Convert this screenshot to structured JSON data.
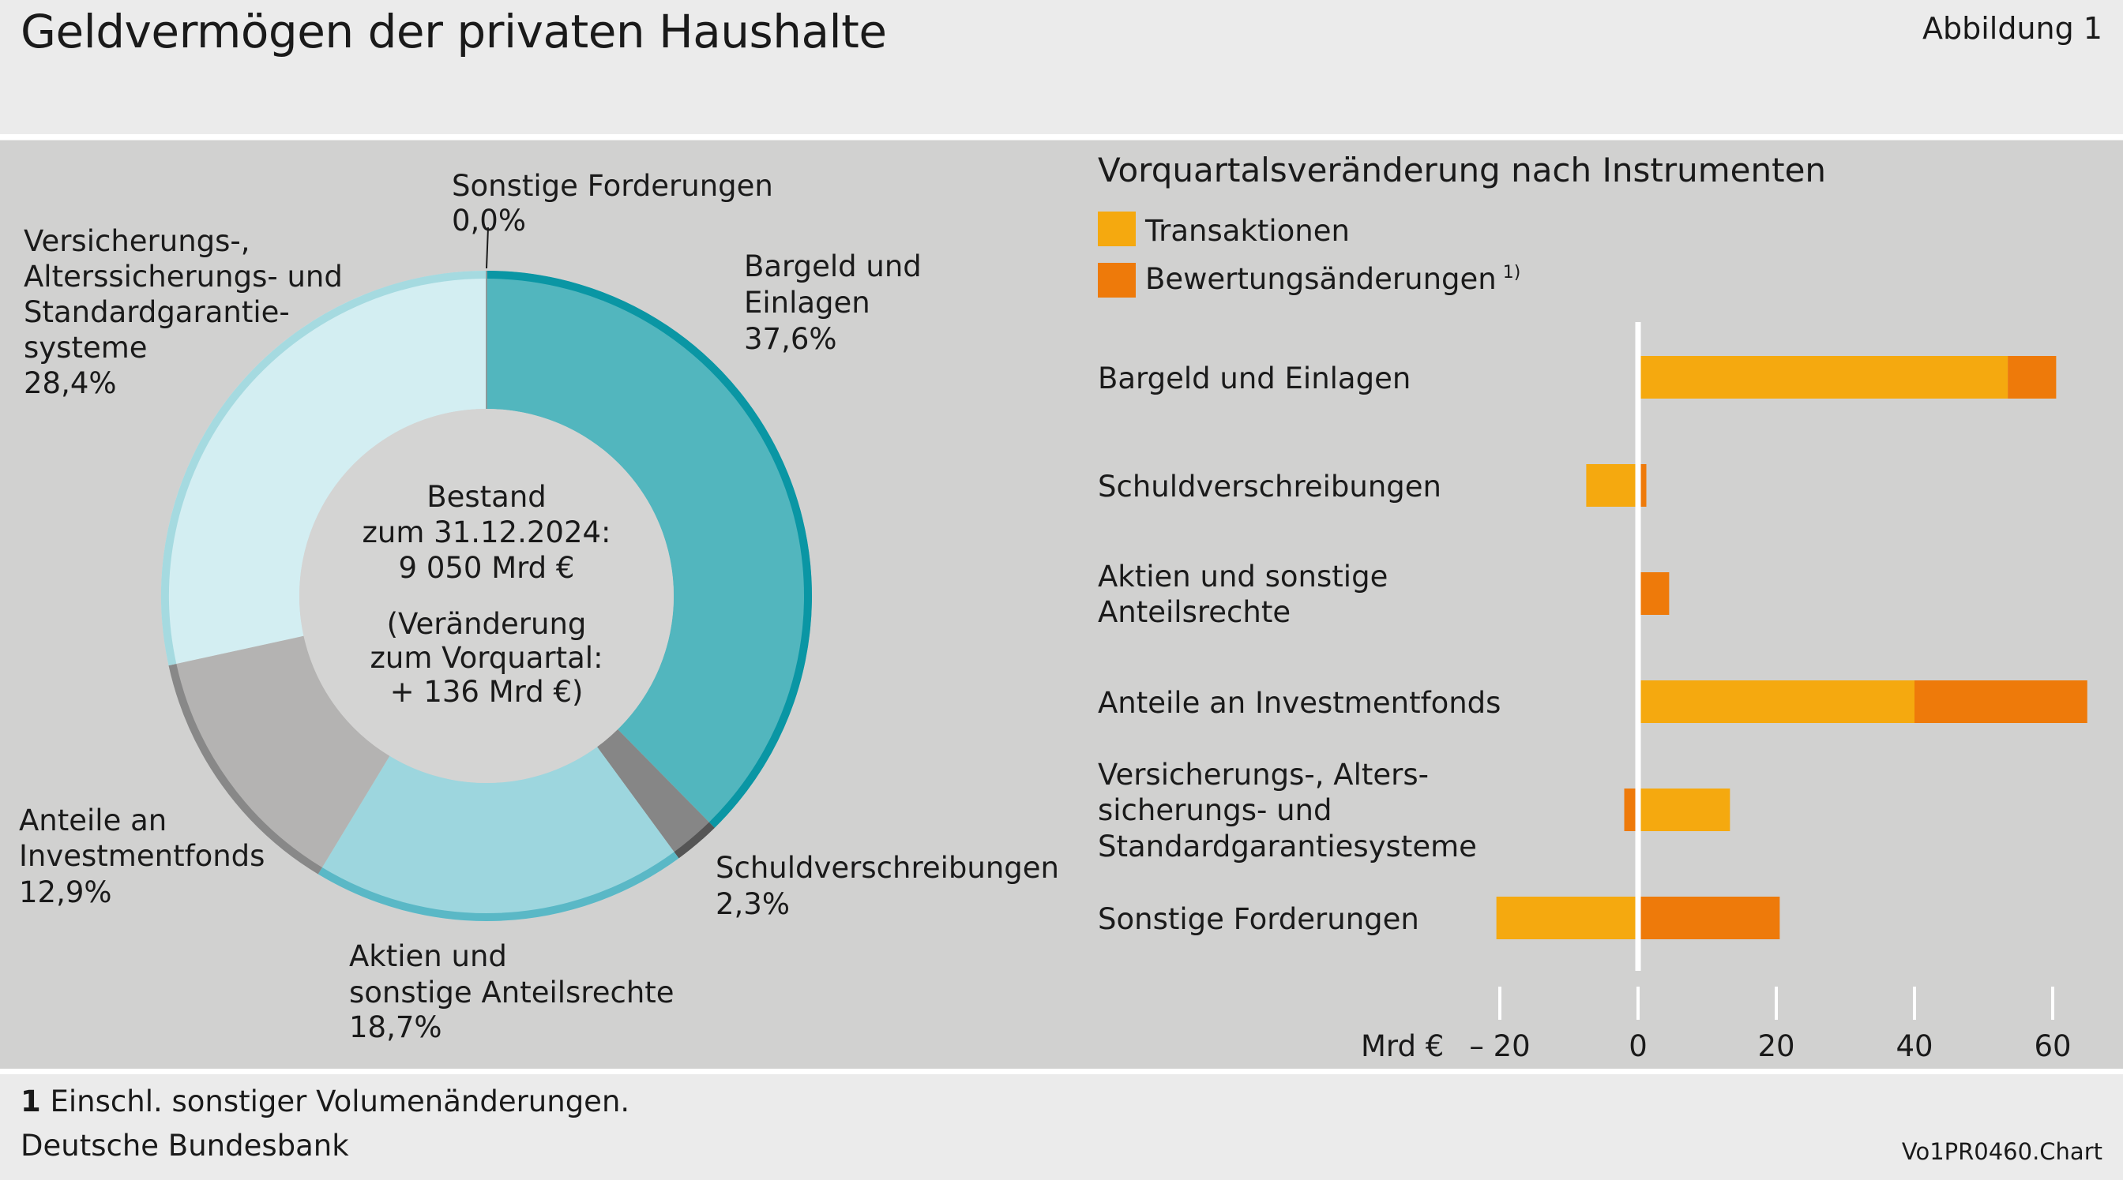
{
  "header": {
    "title": "Geldvermögen der privaten Haushalte",
    "figure_label": "Abbildung 1"
  },
  "donut": {
    "center": {
      "line1": "Bestand",
      "line2": "zum 31.12.2024:",
      "line3": "9 050 Mrd €",
      "line4": "(Veränderung",
      "line5": "zum Vorquartal:",
      "line6": "+ 136 Mrd €)"
    },
    "labels": {
      "sonstige_name": "Sonstige Forderungen",
      "sonstige_value": "0,0%",
      "bargeld_l1": "Bargeld und",
      "bargeld_l2": "Einlagen",
      "bargeld_value": "37,6%",
      "schuld_name": "Schuldverschreibungen",
      "schuld_value": "2,3%",
      "aktien_l1": "Aktien und",
      "aktien_l2": "sonstige Anteilsrechte",
      "aktien_value": "18,7%",
      "invest_l1": "Anteile an",
      "invest_l2": "Investmentfonds",
      "invest_value": "12,9%",
      "vers_l1": "Versicherungs-,",
      "vers_l2": "Alterssicherungs- und",
      "vers_l3": "Standardgarantie-",
      "vers_l4": "systeme",
      "vers_value": "28,4%"
    }
  },
  "bars": {
    "subtitle": "Vorquartalsveränderung nach Instrumenten",
    "legend_transaktionen": "Transaktionen",
    "legend_bewertung": "Bewertungsänderungen",
    "legend_bewertung_note": "1)",
    "unit": "Mrd €",
    "rows": {
      "r1": "Bargeld und Einlagen",
      "r2": "Schuldverschreibungen",
      "r3_l1": "Aktien und sonstige",
      "r3_l2": "Anteilsrechte",
      "r4": "Anteile an Investmentfonds",
      "r5_l1": "Versicherungs-, Alters-",
      "r5_l2": "sicherungs- und",
      "r5_l3": "Standardgarantiesysteme",
      "r6": "Sonstige Forderungen"
    },
    "ticks": [
      "– 20",
      "0",
      "20",
      "40",
      "60"
    ]
  },
  "footer": {
    "footnote_num": "1",
    "footnote_text": "Einschl. sonstiger Volumenänderungen.",
    "source": "Deutsche Bundesbank",
    "code": "Vo1PR0460.Chart"
  },
  "colors": {
    "transaktionen": "#f5a90f",
    "bewertung": "#ee7a0a",
    "bargeld": "#52b6be",
    "bargeld_rim": "#0a96a4",
    "schuld": "#868686",
    "aktien": "#9dd6de",
    "aktien_rim": "#5ab8c6",
    "invest": "#b4b3b2",
    "vers": "#d3eef2",
    "vers_rim": "#a5dae0",
    "center": "#d4d4d3",
    "panel": "#d1d1d0"
  },
  "chart_data": [
    {
      "type": "pie",
      "title": "",
      "categories": [
        "Bargeld und Einlagen",
        "Schuldverschreibungen",
        "Aktien und sonstige Anteilsrechte",
        "Anteile an Investmentfonds",
        "Versicherungs-, Alterssicherungs- und Standardgarantiesysteme",
        "Sonstige Forderungen"
      ],
      "values": [
        37.6,
        2.3,
        18.7,
        12.9,
        28.4,
        0.0
      ],
      "unit": "%"
    },
    {
      "type": "bar",
      "orientation": "horizontal",
      "stacked": true,
      "title": "Vorquartalsveränderung nach Instrumenten",
      "xlabel": "Mrd €",
      "xlim": [
        -20,
        65
      ],
      "categories": [
        "Bargeld und Einlagen",
        "Schuldverschreibungen",
        "Aktien und sonstige Anteilsrechte",
        "Anteile an Investmentfonds",
        "Versicherungs-, Alterssicherungs- und Standardgarantiesysteme",
        "Sonstige Forderungen"
      ],
      "series": [
        {
          "name": "Transaktionen",
          "values": [
            53.5,
            -7.5,
            0.0,
            40.0,
            13.3,
            -20.5
          ]
        },
        {
          "name": "Bewertungsänderungen",
          "values": [
            7.0,
            1.2,
            4.5,
            25.0,
            -2.0,
            20.5
          ]
        }
      ],
      "grid": false,
      "legend": "top-left"
    }
  ]
}
